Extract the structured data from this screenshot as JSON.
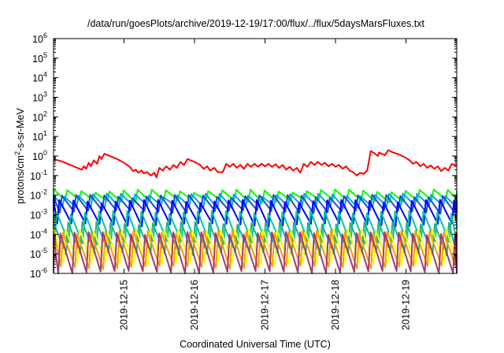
{
  "chart_data": {
    "type": "line",
    "title": "/data/run/goesPlots/archive/2019-12-19/17:00/flux/../flux/5daysMarsFluxes.txt",
    "xlabel": "Coordinated Universal Time (UTC)",
    "ylabel_parts": {
      "main": "protons/cm",
      "sup": "2",
      "rest": "-s-sr-MeV"
    },
    "y_scale": "log",
    "y_decades": [
      -6,
      -5,
      -4,
      -3,
      -2,
      -1,
      0,
      1,
      2,
      3,
      4,
      5,
      6
    ],
    "y_tick_base": "10",
    "x_tick_labels": [
      "2019-12-15",
      "2019-12-16",
      "2019-12-17",
      "2019-12-18",
      "2019-12-19"
    ],
    "x_domain_days": [
      14.0,
      19.72
    ],
    "grid": false,
    "legend": "none",
    "series": [
      {
        "color": "#ff0000",
        "points": [
          [
            14.0,
            0.7
          ],
          [
            14.05,
            0.62
          ],
          [
            14.1,
            0.55
          ],
          [
            14.15,
            0.48
          ],
          [
            14.2,
            0.4
          ],
          [
            14.25,
            0.34
          ],
          [
            14.3,
            0.28
          ],
          [
            14.35,
            0.24
          ],
          [
            14.4,
            0.2
          ],
          [
            14.43,
            0.3
          ],
          [
            14.46,
            0.22
          ],
          [
            14.5,
            0.45
          ],
          [
            14.53,
            0.3
          ],
          [
            14.57,
            0.6
          ],
          [
            14.62,
            0.4
          ],
          [
            14.65,
            1.0
          ],
          [
            14.68,
            0.7
          ],
          [
            14.72,
            1.3
          ],
          [
            14.8,
            1.0
          ],
          [
            14.9,
            0.7
          ],
          [
            15.0,
            0.45
          ],
          [
            15.08,
            0.28
          ],
          [
            15.13,
            0.17
          ],
          [
            15.17,
            0.2
          ],
          [
            15.2,
            0.14
          ],
          [
            15.25,
            0.18
          ],
          [
            15.28,
            0.13
          ],
          [
            15.33,
            0.15
          ],
          [
            15.38,
            0.1
          ],
          [
            15.43,
            0.14
          ],
          [
            15.46,
            0.08
          ],
          [
            15.5,
            0.25
          ],
          [
            15.55,
            0.18
          ],
          [
            15.6,
            0.3
          ],
          [
            15.65,
            0.2
          ],
          [
            15.7,
            0.35
          ],
          [
            15.75,
            0.25
          ],
          [
            15.8,
            0.5
          ],
          [
            15.85,
            0.35
          ],
          [
            15.9,
            0.7
          ],
          [
            16.0,
            0.5
          ],
          [
            16.08,
            0.35
          ],
          [
            16.13,
            0.22
          ],
          [
            16.18,
            0.3
          ],
          [
            16.22,
            0.18
          ],
          [
            16.28,
            0.25
          ],
          [
            16.33,
            0.15
          ],
          [
            16.4,
            0.15
          ],
          [
            16.45,
            0.4
          ],
          [
            16.5,
            0.28
          ],
          [
            16.55,
            0.4
          ],
          [
            16.6,
            0.25
          ],
          [
            16.65,
            0.35
          ],
          [
            16.7,
            0.22
          ],
          [
            16.75,
            0.4
          ],
          [
            16.8,
            0.28
          ],
          [
            16.85,
            0.4
          ],
          [
            16.9,
            0.28
          ],
          [
            16.95,
            0.4
          ],
          [
            17.0,
            0.3
          ],
          [
            17.05,
            0.4
          ],
          [
            17.1,
            0.28
          ],
          [
            17.15,
            0.38
          ],
          [
            17.2,
            0.25
          ],
          [
            17.25,
            0.35
          ],
          [
            17.3,
            0.2
          ],
          [
            17.35,
            0.28
          ],
          [
            17.4,
            0.18
          ],
          [
            17.45,
            0.25
          ],
          [
            17.5,
            0.14
          ],
          [
            17.55,
            0.4
          ],
          [
            17.6,
            0.28
          ],
          [
            17.65,
            0.5
          ],
          [
            17.7,
            0.35
          ],
          [
            17.75,
            0.5
          ],
          [
            17.8,
            0.35
          ],
          [
            17.85,
            0.45
          ],
          [
            17.9,
            0.3
          ],
          [
            17.95,
            0.4
          ],
          [
            18.0,
            0.28
          ],
          [
            18.05,
            0.35
          ],
          [
            18.1,
            0.22
          ],
          [
            18.15,
            0.3
          ],
          [
            18.2,
            0.18
          ],
          [
            18.25,
            0.15
          ],
          [
            18.3,
            0.1
          ],
          [
            18.35,
            0.14
          ],
          [
            18.4,
            0.12
          ],
          [
            18.45,
            0.18
          ],
          [
            18.5,
            1.8
          ],
          [
            18.55,
            1.4
          ],
          [
            18.6,
            1.0
          ],
          [
            18.62,
            1.5
          ],
          [
            18.7,
            1.1
          ],
          [
            18.75,
            2.0
          ],
          [
            18.8,
            1.6
          ],
          [
            18.9,
            1.2
          ],
          [
            19.0,
            0.8
          ],
          [
            19.05,
            0.6
          ],
          [
            19.1,
            0.4
          ],
          [
            19.15,
            0.5
          ],
          [
            19.2,
            0.3
          ],
          [
            19.25,
            0.4
          ],
          [
            19.3,
            0.25
          ],
          [
            19.35,
            0.33
          ],
          [
            19.4,
            0.22
          ],
          [
            19.45,
            0.3
          ],
          [
            19.5,
            0.17
          ],
          [
            19.55,
            0.25
          ],
          [
            19.6,
            0.18
          ],
          [
            19.65,
            0.4
          ],
          [
            19.72,
            0.3
          ]
        ]
      },
      {
        "color": "#00ff00",
        "base": 0.009,
        "amp": 1.8,
        "period": 0.2,
        "pattern": "sawtooth"
      },
      {
        "color": "#00a0ff",
        "base": 0.005,
        "amp": 2.0,
        "period": 0.2,
        "pattern": "sawtooth"
      },
      {
        "color": "#1e50c8",
        "base": 0.0035,
        "amp": 2.5,
        "period": 0.2,
        "pattern": "sawtooth"
      },
      {
        "color": "#0000ff",
        "base": 0.0012,
        "amp": 4.0,
        "period": 0.2,
        "pattern": "sawtooth"
      },
      {
        "color": "#00c8a0",
        "base": 0.00022,
        "amp": 6.0,
        "period": 0.2,
        "pattern": "sawtooth"
      },
      {
        "color": "#20b090",
        "base": 6e-05,
        "amp": 6.0,
        "period": 0.2,
        "pattern": "sawtooth"
      },
      {
        "color": "#ffff00",
        "base": 2.2e-05,
        "amp": 7.0,
        "period": 0.2,
        "pattern": "sawtooth"
      },
      {
        "color": "#ff9900",
        "base": 1.6e-05,
        "amp": 8.0,
        "period": 0.2,
        "pattern": "sawtooth"
      },
      {
        "color": "#a03c6e",
        "base": 1.1e-05,
        "amp": 10.0,
        "period": 0.2,
        "pattern": "sawtooth"
      }
    ]
  }
}
